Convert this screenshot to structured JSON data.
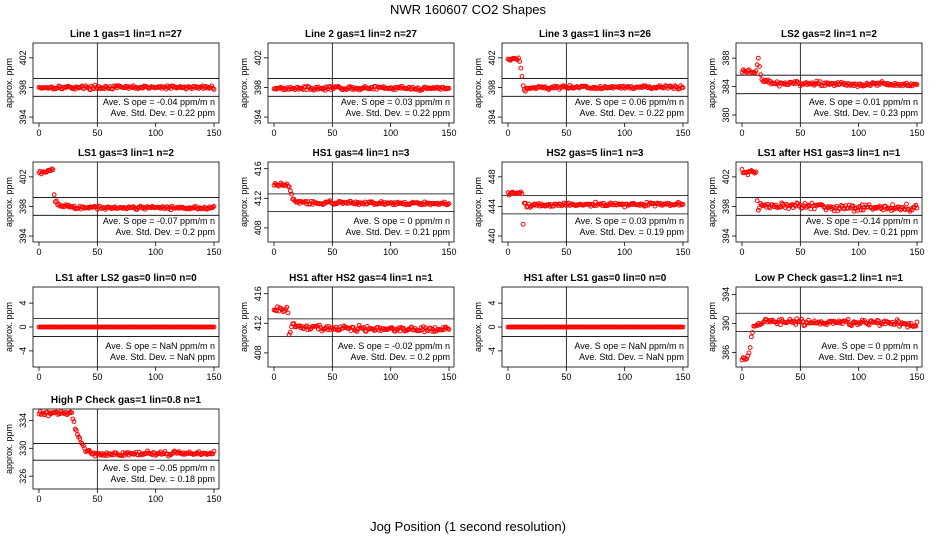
{
  "page": {
    "title": "NWR  160607  CO2 Shapes",
    "xlabel": "Jog Position (1 second resolution)",
    "ylabel": "approx. ppm",
    "slope_prefix": "Ave. S ope =",
    "slope_unit": "ppm/m n",
    "sd_prefix": "Ave. Std. Dev. =",
    "sd_unit": "ppm",
    "point_color": "#ff0000"
  },
  "chart_data": [
    {
      "type": "scatter",
      "title": "Line 1 gas=1 lin=1 n=27",
      "xlim": [
        0,
        150
      ],
      "xticks": [
        0,
        50,
        100,
        150
      ],
      "ylim": [
        393.6,
        403.6
      ],
      "yticks": [
        394,
        398,
        402
      ],
      "ref_lines": [
        396.8,
        399.2
      ],
      "shape": [
        {
          "x": 0,
          "y": 398.0
        },
        {
          "x": 150,
          "y": 398.0
        }
      ],
      "noise": 0.12,
      "slope": "-0.04",
      "sd": "0.22"
    },
    {
      "type": "scatter",
      "title": "Line 2 gas=1 lin=2 n=27",
      "xlim": [
        0,
        150
      ],
      "xticks": [
        0,
        50,
        100,
        150
      ],
      "ylim": [
        393.6,
        403.6
      ],
      "yticks": [
        394,
        398,
        402
      ],
      "ref_lines": [
        396.8,
        399.2
      ],
      "shape": [
        {
          "x": 0,
          "y": 397.9
        },
        {
          "x": 150,
          "y": 397.9
        }
      ],
      "noise": 0.12,
      "slope": "0.03",
      "sd": "0.22"
    },
    {
      "type": "scatter",
      "title": "Line 3 gas=1 lin=3 n=26",
      "xlim": [
        0,
        150
      ],
      "xticks": [
        0,
        50,
        100,
        150
      ],
      "ylim": [
        393.6,
        403.6
      ],
      "yticks": [
        394,
        398,
        402
      ],
      "ref_lines": [
        396.8,
        399.2
      ],
      "shape": [
        {
          "x": 0,
          "y": 401.8
        },
        {
          "x": 9,
          "y": 401.9
        },
        {
          "x": 10,
          "y": 401.4
        },
        {
          "x": 11,
          "y": 400.5
        },
        {
          "x": 12,
          "y": 399.5
        },
        {
          "x": 13,
          "y": 398.4
        },
        {
          "x": 14,
          "y": 397.7
        },
        {
          "x": 16,
          "y": 397.8
        },
        {
          "x": 22,
          "y": 398.0
        },
        {
          "x": 150,
          "y": 398.0
        }
      ],
      "noise": 0.12,
      "slope": "0.06",
      "sd": "0.22"
    },
    {
      "type": "scatter",
      "title": "LS2 gas=2 lin=1 n=2",
      "xlim": [
        0,
        150
      ],
      "xticks": [
        0,
        50,
        100,
        150
      ],
      "ylim": [
        379.3,
        389.7
      ],
      "yticks": [
        380,
        384,
        388
      ],
      "ref_lines": [
        383.0,
        385.6
      ],
      "shape": [
        {
          "x": 0,
          "y": 386.1
        },
        {
          "x": 12,
          "y": 386.1
        },
        {
          "x": 13,
          "y": 387.0
        },
        {
          "x": 14,
          "y": 387.9
        },
        {
          "x": 15,
          "y": 386.8
        },
        {
          "x": 16,
          "y": 385.6
        },
        {
          "x": 18,
          "y": 384.8
        },
        {
          "x": 30,
          "y": 384.4
        },
        {
          "x": 150,
          "y": 384.3
        }
      ],
      "noise": 0.15,
      "slope": "0.01",
      "sd": "0.23"
    },
    {
      "type": "scatter",
      "title": "LS1 gas=3 lin=1 n=2",
      "xlim": [
        0,
        150
      ],
      "xticks": [
        0,
        50,
        100,
        150
      ],
      "ylim": [
        393.6,
        403.6
      ],
      "yticks": [
        394,
        398,
        402
      ],
      "ref_lines": [
        396.8,
        399.2
      ],
      "shape": [
        {
          "x": 0,
          "y": 402.5
        },
        {
          "x": 12,
          "y": 403.0
        },
        {
          "x": 13,
          "y": 399.8
        },
        {
          "x": 14,
          "y": 398.7
        },
        {
          "x": 16,
          "y": 398.2
        },
        {
          "x": 30,
          "y": 397.9
        },
        {
          "x": 150,
          "y": 397.8
        }
      ],
      "noise": 0.12,
      "slope": "-0.07",
      "sd": "0.2"
    },
    {
      "type": "scatter",
      "title": "HS1 gas=4 lin=1 n=3",
      "xlim": [
        0,
        150
      ],
      "xticks": [
        0,
        50,
        100,
        150
      ],
      "ylim": [
        406.5,
        416.5
      ],
      "yticks": [
        408,
        412,
        416
      ],
      "ref_lines": [
        410.2,
        412.6
      ],
      "shape": [
        {
          "x": 0,
          "y": 413.8
        },
        {
          "x": 13,
          "y": 413.8
        },
        {
          "x": 14,
          "y": 413.0
        },
        {
          "x": 16,
          "y": 411.9
        },
        {
          "x": 19,
          "y": 411.4
        },
        {
          "x": 150,
          "y": 411.3
        }
      ],
      "noise": 0.12,
      "slope": "0",
      "sd": "0.21"
    },
    {
      "type": "scatter",
      "title": "HS2 gas=5 lin=1 n=3",
      "xlim": [
        0,
        150
      ],
      "xticks": [
        0,
        50,
        100,
        150
      ],
      "ylim": [
        439.6,
        449.6
      ],
      "yticks": [
        440,
        444,
        448
      ],
      "ref_lines": [
        443.0,
        445.5
      ],
      "shape": [
        {
          "x": 0,
          "y": 445.8
        },
        {
          "x": 12,
          "y": 445.8
        },
        {
          "x": 13,
          "y": 441.6
        },
        {
          "x": 14,
          "y": 444.6
        },
        {
          "x": 16,
          "y": 444.0
        },
        {
          "x": 25,
          "y": 444.2
        },
        {
          "x": 150,
          "y": 444.3
        }
      ],
      "noise": 0.12,
      "slope": "0.03",
      "sd": "0.19"
    },
    {
      "type": "scatter",
      "title": "LS1 after HS1 gas=3 lin=1 n=1",
      "xlim": [
        0,
        150
      ],
      "xticks": [
        0,
        50,
        100,
        150
      ],
      "ylim": [
        393.6,
        403.6
      ],
      "yticks": [
        394,
        398,
        402
      ],
      "ref_lines": [
        396.8,
        399.2
      ],
      "shape": [
        {
          "x": 0,
          "y": 402.6
        },
        {
          "x": 12,
          "y": 402.6
        },
        {
          "x": 13,
          "y": 398.4
        },
        {
          "x": 14,
          "y": 397.6
        },
        {
          "x": 16,
          "y": 398.2
        },
        {
          "x": 30,
          "y": 398.0
        },
        {
          "x": 150,
          "y": 397.8
        }
      ],
      "noise": 0.22,
      "slope": "-0.14",
      "sd": "0.21"
    },
    {
      "type": "scatter",
      "title": "LS1 after LS2 gas=0 lin=0 n=0",
      "xlim": [
        0,
        150
      ],
      "xticks": [
        0,
        50,
        100,
        150
      ],
      "ylim": [
        -6.2,
        6.2
      ],
      "yticks": [
        -4,
        0,
        4
      ],
      "ref_lines": [
        -1.6,
        1.4
      ],
      "shape": [
        {
          "x": 0,
          "y": 0
        },
        {
          "x": 150,
          "y": 0
        }
      ],
      "noise": 0,
      "slope": "NaN",
      "sd": "NaN"
    },
    {
      "type": "scatter",
      "title": "HS1 after HS2 gas=4 lin=1 n=1",
      "xlim": [
        0,
        150
      ],
      "xticks": [
        0,
        50,
        100,
        150
      ],
      "ylim": [
        406.5,
        416.5
      ],
      "yticks": [
        408,
        412,
        416
      ],
      "ref_lines": [
        410.2,
        412.6
      ],
      "shape": [
        {
          "x": 0,
          "y": 413.8
        },
        {
          "x": 12,
          "y": 413.8
        },
        {
          "x": 13,
          "y": 410.2
        },
        {
          "x": 14,
          "y": 411.0
        },
        {
          "x": 16,
          "y": 411.9
        },
        {
          "x": 20,
          "y": 411.6
        },
        {
          "x": 40,
          "y": 411.3
        },
        {
          "x": 150,
          "y": 411.2
        }
      ],
      "noise": 0.2,
      "slope": "-0.02",
      "sd": "0.2"
    },
    {
      "type": "scatter",
      "title": "HS1 after LS1 gas=0 lin=0 n=0",
      "xlim": [
        0,
        150
      ],
      "xticks": [
        0,
        50,
        100,
        150
      ],
      "ylim": [
        -6.2,
        6.2
      ],
      "yticks": [
        -4,
        0,
        4
      ],
      "ref_lines": [
        -1.6,
        1.4
      ],
      "shape": [
        {
          "x": 0,
          "y": 0
        },
        {
          "x": 150,
          "y": 0
        }
      ],
      "noise": 0,
      "slope": "NaN",
      "sd": "NaN"
    },
    {
      "type": "scatter",
      "title": "Low P Check gas=1.2 lin=1 n=1",
      "xlim": [
        0,
        150
      ],
      "xticks": [
        0,
        50,
        100,
        150
      ],
      "ylim": [
        384.4,
        394.6
      ],
      "yticks": [
        386,
        390,
        394
      ],
      "ref_lines": [
        388.9,
        391.4
      ],
      "shape": [
        {
          "x": 0,
          "y": 384.9
        },
        {
          "x": 4,
          "y": 385.0
        },
        {
          "x": 6,
          "y": 386.0
        },
        {
          "x": 8,
          "y": 388.0
        },
        {
          "x": 10,
          "y": 389.4
        },
        {
          "x": 13,
          "y": 389.9
        },
        {
          "x": 20,
          "y": 390.2
        },
        {
          "x": 130,
          "y": 390.1
        },
        {
          "x": 150,
          "y": 389.8
        }
      ],
      "noise": 0.2,
      "slope": "0",
      "sd": "0.2"
    },
    {
      "type": "scatter",
      "title": "High P Check gas=1 lin=0.8 n=1",
      "xlim": [
        0,
        150
      ],
      "xticks": [
        0,
        50,
        100,
        150
      ],
      "ylim": [
        324.6,
        335.2
      ],
      "yticks": [
        326,
        330,
        334
      ],
      "ref_lines": [
        328.3,
        330.7
      ],
      "shape": [
        {
          "x": 0,
          "y": 335.0
        },
        {
          "x": 28,
          "y": 335.0
        },
        {
          "x": 30,
          "y": 333.5
        },
        {
          "x": 33,
          "y": 332.0
        },
        {
          "x": 36,
          "y": 330.8
        },
        {
          "x": 40,
          "y": 329.8
        },
        {
          "x": 45,
          "y": 329.2
        },
        {
          "x": 60,
          "y": 329.2
        },
        {
          "x": 150,
          "y": 329.3
        }
      ],
      "noise": 0.15,
      "slope": "-0.05",
      "sd": "0.18"
    }
  ]
}
